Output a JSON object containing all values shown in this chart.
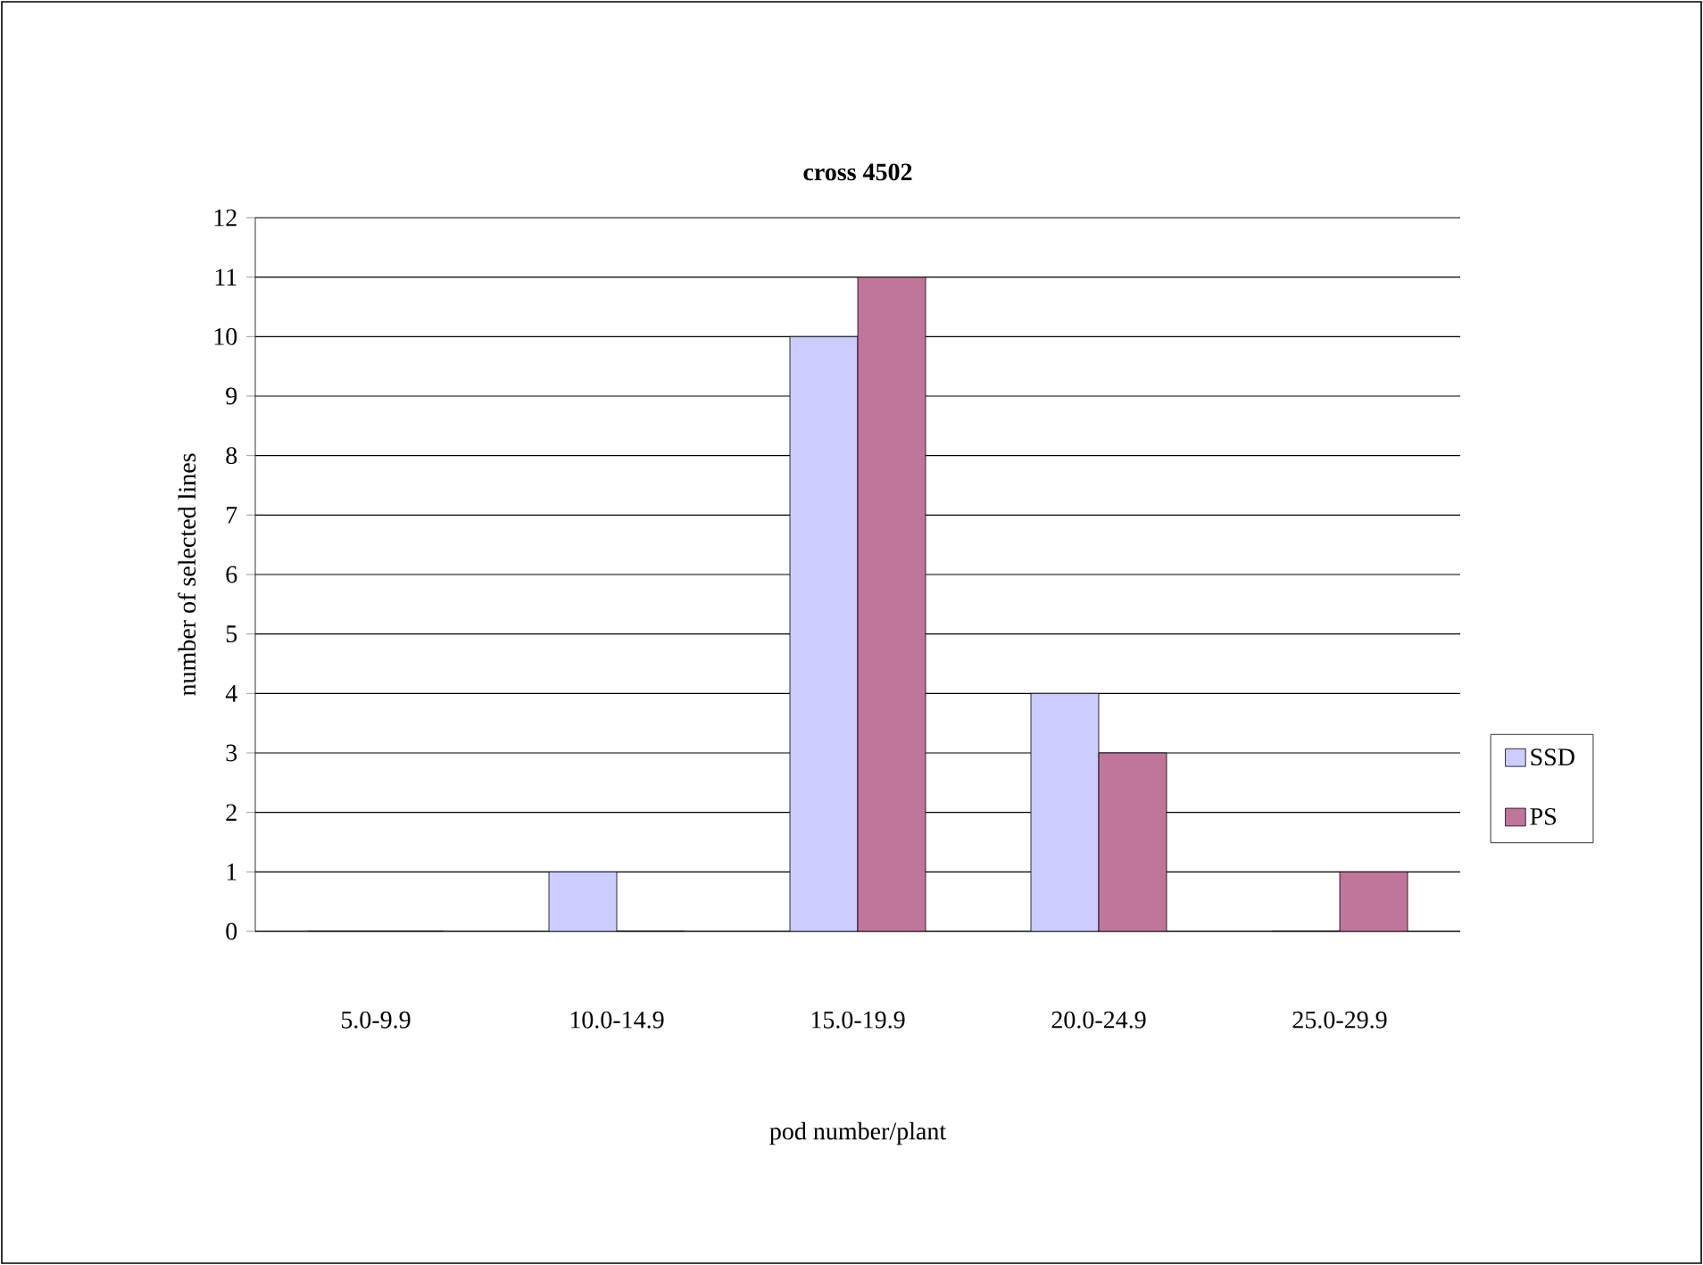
{
  "chart_data": {
    "type": "bar",
    "title": "cross 4502",
    "xlabel": "pod number/plant",
    "ylabel": "number of selected lines",
    "categories": [
      "5.0-9.9",
      "10.0-14.9",
      "15.0-19.9",
      "20.0-24.9",
      "25.0-29.9"
    ],
    "series": [
      {
        "name": "SSD",
        "color": "#ccccff",
        "values": [
          0,
          1,
          10,
          4,
          0
        ]
      },
      {
        "name": "PS",
        "color": "#c0769a",
        "values": [
          0,
          0,
          11,
          3,
          1
        ]
      }
    ],
    "ylim": [
      0,
      12
    ],
    "yticks": [
      0,
      1,
      2,
      3,
      4,
      5,
      6,
      7,
      8,
      9,
      10,
      11,
      12
    ],
    "grid": "y",
    "legend": "right"
  }
}
